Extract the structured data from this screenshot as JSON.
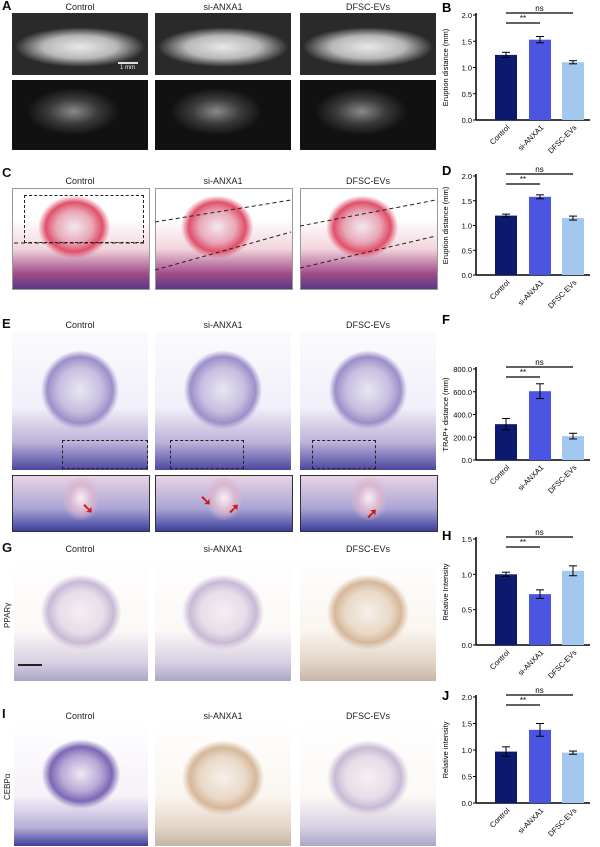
{
  "panels": {
    "A": {
      "label": "A",
      "columns": [
        "Control",
        "si-ANXA1",
        "DFSC-EVs"
      ],
      "scale_text": "1 mm"
    },
    "C": {
      "label": "C",
      "columns": [
        "Control",
        "si-ANXA1",
        "DFSC-EVs"
      ]
    },
    "E": {
      "label": "E",
      "columns": [
        "Control",
        "si-ANXA1",
        "DFSC-EVs"
      ]
    },
    "G": {
      "label": "G",
      "columns": [
        "Control",
        "si-ANXA1",
        "DFSC-EVs"
      ],
      "row_label": "PPARγ"
    },
    "I": {
      "label": "I",
      "columns": [
        "Control",
        "si-ANXA1",
        "DFSC-EVs"
      ],
      "row_label": "CEBPα"
    }
  },
  "colors": {
    "Control": "#0b1a6e",
    "si-ANXA1": "#4b55e2",
    "DFSC-EVs": "#a3c8f0"
  },
  "chart_data": [
    {
      "panel": "B",
      "type": "bar",
      "categories": [
        "Control",
        "si-ANXA1",
        "DFSC-EVs"
      ],
      "values": [
        1.24,
        1.53,
        1.1
      ],
      "errors": [
        0.05,
        0.06,
        0.03
      ],
      "ylabel": "Eruption distance (mm)",
      "ylim": [
        0,
        2.0
      ],
      "yticks": [
        "0.0",
        "0.5",
        "1.0",
        "1.5",
        "2.0"
      ],
      "significance": [
        {
          "pair": [
            "Control",
            "si-ANXA1"
          ],
          "label": "**"
        },
        {
          "pair": [
            "Control",
            "DFSC-EVs"
          ],
          "label": "ns"
        }
      ]
    },
    {
      "panel": "D",
      "type": "bar",
      "categories": [
        "Control",
        "si-ANXA1",
        "DFSC-EVs"
      ],
      "values": [
        1.2,
        1.58,
        1.15
      ],
      "errors": [
        0.03,
        0.04,
        0.04
      ],
      "ylabel": "Eruption distance (mm)",
      "ylim": [
        0,
        2.0
      ],
      "yticks": [
        "0.0",
        "0.5",
        "1.0",
        "1.5",
        "2.0"
      ],
      "significance": [
        {
          "pair": [
            "Control",
            "si-ANXA1"
          ],
          "label": "**"
        },
        {
          "pair": [
            "Control",
            "DFSC-EVs"
          ],
          "label": "ns"
        }
      ]
    },
    {
      "panel": "F",
      "type": "bar",
      "categories": [
        "Control",
        "si-ANXA1",
        "DFSC-EVs"
      ],
      "values": [
        315,
        605,
        210
      ],
      "errors": [
        50,
        65,
        25
      ],
      "ylabel": "TRAP+ distance (mm)",
      "ylim": [
        0,
        800
      ],
      "yticks": [
        "0.0",
        "200.0",
        "400.0",
        "600.0",
        "800.0"
      ],
      "significance": [
        {
          "pair": [
            "Control",
            "si-ANXA1"
          ],
          "label": "**"
        },
        {
          "pair": [
            "Control",
            "DFSC-EVs"
          ],
          "label": "ns"
        }
      ]
    },
    {
      "panel": "H",
      "type": "bar",
      "categories": [
        "Control",
        "si-ANXA1",
        "DFSC-EVs"
      ],
      "values": [
        1.0,
        0.72,
        1.05
      ],
      "errors": [
        0.03,
        0.06,
        0.07
      ],
      "ylabel": "Relative Intensity",
      "ylim": [
        0,
        1.5
      ],
      "yticks": [
        "0.0",
        "0.5",
        "1.0",
        "1.5"
      ],
      "significance": [
        {
          "pair": [
            "Control",
            "si-ANXA1"
          ],
          "label": "**"
        },
        {
          "pair": [
            "Control",
            "DFSC-EVs"
          ],
          "label": "ns"
        }
      ]
    },
    {
      "panel": "J",
      "type": "bar",
      "categories": [
        "Control",
        "si-ANXA1",
        "DFSC-EVs"
      ],
      "values": [
        0.97,
        1.38,
        0.95
      ],
      "errors": [
        0.09,
        0.12,
        0.03
      ],
      "ylabel": "Relative intensity",
      "ylim": [
        0,
        2.0
      ],
      "yticks": [
        "0.0",
        "0.5",
        "1.0",
        "1.5",
        "2.0"
      ],
      "significance": [
        {
          "pair": [
            "Control",
            "si-ANXA1"
          ],
          "label": "**"
        },
        {
          "pair": [
            "Control",
            "DFSC-EVs"
          ],
          "label": "ns"
        }
      ]
    }
  ]
}
